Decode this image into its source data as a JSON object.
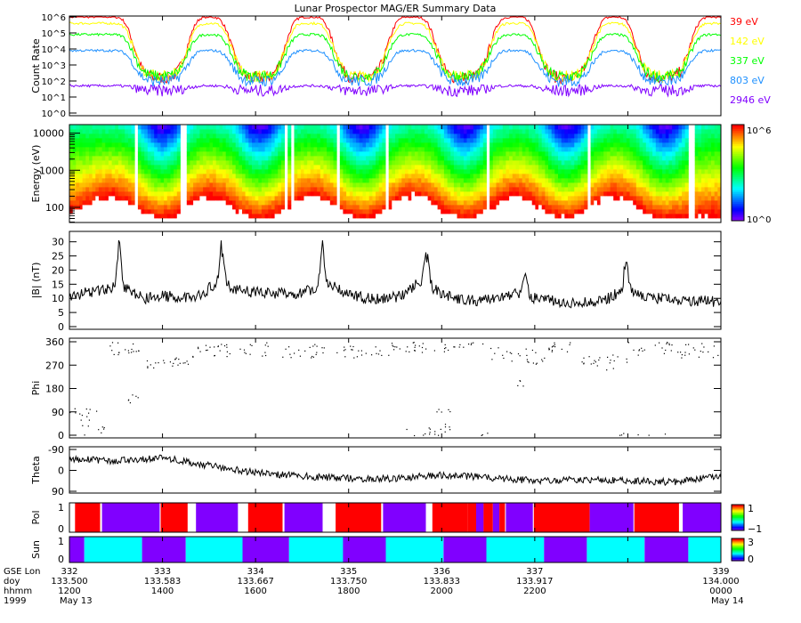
{
  "title": "Lunar Prospector MAG/ER Summary Data",
  "x_axis": {
    "row_labels": [
      "GSE Lon",
      "doy",
      "hhmm",
      "1999"
    ],
    "ticks": [
      {
        "lon": "332",
        "doy": "133.500",
        "hhmm": "1200",
        "date": "May 13"
      },
      {
        "lon": "333",
        "doy": "133.583",
        "hhmm": "1400",
        "date": ""
      },
      {
        "lon": "334",
        "doy": "133.667",
        "hhmm": "1600",
        "date": ""
      },
      {
        "lon": "335",
        "doy": "133.750",
        "hhmm": "1800",
        "date": ""
      },
      {
        "lon": "336",
        "doy": "133.833",
        "hhmm": "2000",
        "date": ""
      },
      {
        "lon": "337",
        "doy": "133.917",
        "hhmm": "2200",
        "date": ""
      },
      {
        "lon": "339",
        "doy": "134.000",
        "hhmm": "0000",
        "date": "May 14"
      }
    ],
    "range": [
      332,
      339
    ]
  },
  "chart_data": [
    {
      "type": "line",
      "panel": "count-rate",
      "ylabel": "Count Rate",
      "yscale": "log",
      "ylim": [
        1,
        1000000
      ],
      "ytick_labels": [
        "10^0",
        "10^1",
        "10^2",
        "10^3",
        "10^4",
        "10^5",
        "10^6"
      ],
      "wake_centers": [
        332.98,
        334.03,
        335.13,
        336.23,
        337.33,
        338.38
      ],
      "series": [
        {
          "name": "39 eV",
          "color": "#ff0000",
          "day_log10": 6.0,
          "wake_log10": 2.2
        },
        {
          "name": "142 eV",
          "color": "#ffff00",
          "day_log10": 5.6,
          "wake_log10": 2.3
        },
        {
          "name": "337 eV",
          "color": "#00ff00",
          "day_log10": 4.9,
          "wake_log10": 2.3
        },
        {
          "name": "803 eV",
          "color": "#1e90ff",
          "day_log10": 3.9,
          "wake_log10": 2.0
        },
        {
          "name": "2946 eV",
          "color": "#8000ff",
          "day_log10": 1.7,
          "wake_log10": 1.4
        }
      ]
    },
    {
      "type": "heatmap",
      "panel": "energy-spectrogram",
      "ylabel": "Energy (eV)",
      "yscale": "log",
      "ylim": [
        39,
        17000
      ],
      "ytick_labels": [
        "100",
        "1000",
        "10000"
      ],
      "colorbar": {
        "min_label": "10^0",
        "max_label": "10^6",
        "range_log10": [
          0,
          6
        ]
      },
      "data_gaps_lon": [
        332.69,
        333.21,
        334.3,
        334.37,
        334.87,
        335.39,
        336.49,
        337.57,
        338.67
      ]
    },
    {
      "type": "line",
      "panel": "field-magnitude",
      "ylabel": "|B| (nT)",
      "ylim": [
        0,
        31
      ],
      "ytick_labels": [
        "0",
        "5",
        "10",
        "15",
        "20",
        "25",
        "30"
      ],
      "x": [
        332.0,
        332.2,
        332.4,
        332.6,
        332.8,
        333.0,
        333.2,
        333.4,
        333.6,
        333.8,
        334.0,
        334.2,
        334.4,
        334.6,
        334.8,
        335.0,
        335.2,
        335.4,
        335.6,
        335.8,
        336.0,
        336.2,
        336.4,
        336.6,
        336.8,
        337.0,
        337.2,
        337.4,
        337.6,
        337.8,
        338.0,
        338.2,
        338.4,
        338.6,
        338.8,
        339.0
      ],
      "y": [
        11,
        12,
        13,
        14,
        10,
        11,
        10,
        11,
        16,
        13,
        12,
        12,
        11,
        13,
        15,
        11,
        10,
        10,
        11,
        17,
        11,
        10,
        9,
        10,
        12,
        10,
        9,
        8,
        9,
        10,
        14,
        10,
        10,
        9,
        9,
        9
      ],
      "spikes": [
        [
          332.53,
          30
        ],
        [
          333.64,
          28
        ],
        [
          334.72,
          29
        ],
        [
          335.84,
          22
        ],
        [
          336.9,
          20
        ],
        [
          337.98,
          22
        ]
      ]
    },
    {
      "type": "scatter",
      "panel": "phi",
      "ylabel": "Phi",
      "ylim": [
        0,
        360
      ],
      "ytick_labels": [
        "0",
        "90",
        "180",
        "270",
        "360"
      ],
      "clusters": [
        [
          332.0,
          332.3,
          60,
          110,
          12
        ],
        [
          332.1,
          332.4,
          0,
          40,
          8
        ],
        [
          332.4,
          332.8,
          310,
          360,
          18
        ],
        [
          332.6,
          332.8,
          100,
          160,
          6
        ],
        [
          332.8,
          333.3,
          260,
          300,
          22
        ],
        [
          333.3,
          334.4,
          300,
          360,
          40
        ],
        [
          334.4,
          335.6,
          300,
          360,
          45
        ],
        [
          335.6,
          336.1,
          320,
          360,
          20
        ],
        [
          335.6,
          336.1,
          0,
          30,
          14
        ],
        [
          335.9,
          336.1,
          30,
          110,
          8
        ],
        [
          336.1,
          336.5,
          340,
          360,
          10
        ],
        [
          336.5,
          337.1,
          270,
          340,
          25
        ],
        [
          336.8,
          336.9,
          190,
          240,
          4
        ],
        [
          337.1,
          337.5,
          320,
          360,
          15
        ],
        [
          337.5,
          338.0,
          250,
          320,
          22
        ],
        [
          337.9,
          338.4,
          0,
          10,
          6
        ],
        [
          338.0,
          339.0,
          300,
          360,
          40
        ],
        [
          336.4,
          336.5,
          0,
          10,
          3
        ]
      ]
    },
    {
      "type": "line",
      "panel": "theta",
      "ylabel": "Theta",
      "ylim": [
        -90,
        90
      ],
      "ytick_labels": [
        "-90",
        "0",
        "90"
      ],
      "x": [
        332,
        332.5,
        333,
        333.5,
        334,
        334.5,
        335,
        335.5,
        336,
        336.5,
        337,
        337.5,
        338,
        338.5,
        339
      ],
      "y": [
        -50,
        -40,
        -55,
        -20,
        10,
        25,
        35,
        35,
        20,
        30,
        45,
        40,
        45,
        50,
        20
      ]
    },
    {
      "type": "heatmap",
      "panel": "polarity",
      "ylabel": "Pol",
      "ytick_labels": [
        "0",
        "1"
      ],
      "colorbar": {
        "min_label": "−1",
        "max_label": "1"
      },
      "segments": [
        [
          332.06,
          332.33,
          1
        ],
        [
          332.35,
          332.97,
          -1
        ],
        [
          332.98,
          333.27,
          1
        ],
        [
          333.36,
          333.81,
          -1
        ],
        [
          333.92,
          334.29,
          1
        ],
        [
          334.31,
          334.72,
          -1
        ],
        [
          334.86,
          335.35,
          1
        ],
        [
          335.37,
          335.83,
          -1
        ],
        [
          335.9,
          336.28,
          1
        ],
        [
          336.28,
          336.37,
          1
        ],
        [
          336.37,
          336.45,
          -1
        ],
        [
          336.45,
          336.55,
          1
        ],
        [
          336.55,
          336.62,
          -1
        ],
        [
          336.62,
          336.68,
          1
        ],
        [
          336.69,
          336.98,
          -1
        ],
        [
          336.99,
          337.59,
          1
        ],
        [
          337.59,
          338.06,
          -1
        ],
        [
          338.07,
          338.55,
          1
        ],
        [
          338.59,
          339.0,
          -1
        ]
      ]
    },
    {
      "type": "heatmap",
      "panel": "sun",
      "ylabel": "Sun",
      "ytick_labels": [
        "0",
        "1"
      ],
      "colorbar": {
        "min_label": "0",
        "max_label": "3"
      },
      "segments": [
        [
          332.0,
          332.16,
          0
        ],
        [
          332.16,
          332.78,
          1
        ],
        [
          332.78,
          333.25,
          0
        ],
        [
          333.25,
          333.86,
          1
        ],
        [
          333.86,
          334.36,
          0
        ],
        [
          334.36,
          334.94,
          1
        ],
        [
          334.94,
          335.4,
          0
        ],
        [
          335.4,
          336.02,
          1
        ],
        [
          336.02,
          336.48,
          0
        ],
        [
          336.48,
          337.1,
          1
        ],
        [
          337.1,
          337.56,
          0
        ],
        [
          337.56,
          338.18,
          1
        ],
        [
          338.18,
          338.65,
          0
        ],
        [
          338.65,
          339.0,
          1
        ]
      ]
    }
  ],
  "colors": {
    "pol_pos": "#ff0000",
    "pol_neg": "#8000ff",
    "sun_lit": "#00ffff",
    "sun_shadow": "#8000ff"
  }
}
